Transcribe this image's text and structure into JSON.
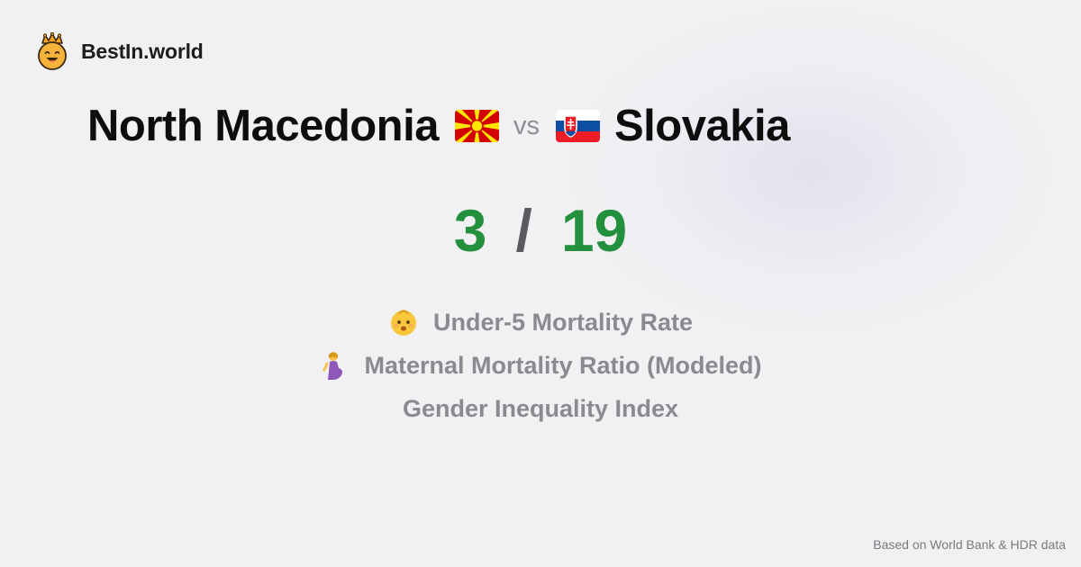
{
  "brand": {
    "name": "BestIn.world",
    "logo_icon": "crowned-smiley-icon"
  },
  "comparison": {
    "left_country": "North Macedonia",
    "left_flag": "north-macedonia-flag-icon",
    "separator": "vs",
    "right_country": "Slovakia",
    "right_flag": "slovakia-flag-icon"
  },
  "score": {
    "left": "3",
    "divider": "/",
    "right": "19",
    "color": "#22903d"
  },
  "metrics": [
    {
      "label": "Under-5 Mortality Rate",
      "icon": "baby-icon"
    },
    {
      "label": "Maternal Mortality Ratio (Modeled)",
      "icon": "pregnant-woman-icon"
    },
    {
      "label": "Gender Inequality Index",
      "icon": ""
    }
  ],
  "footer": {
    "source_note": "Based on World Bank & HDR data"
  }
}
